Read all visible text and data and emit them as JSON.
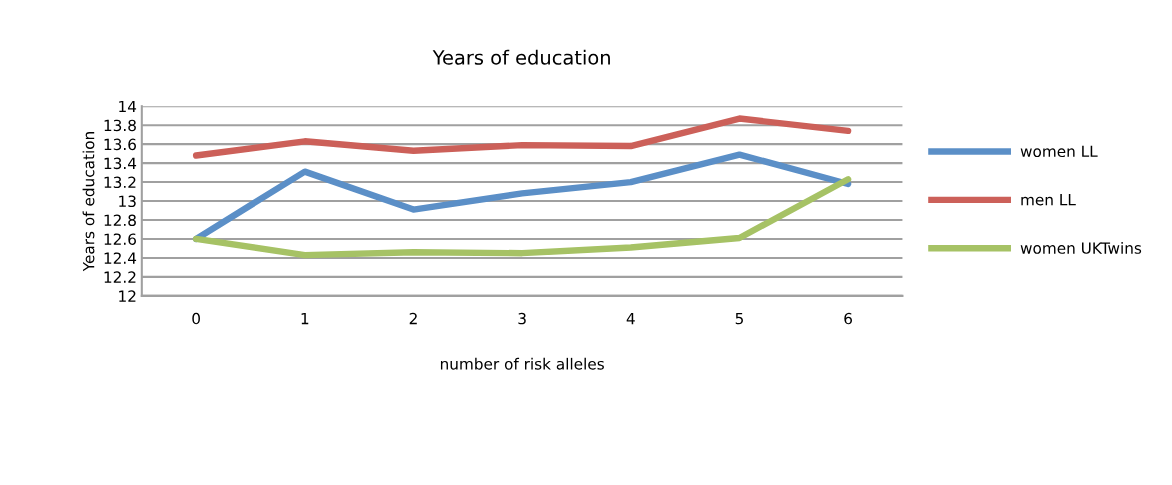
{
  "chart_data": {
    "type": "line",
    "title": "Years of education",
    "xlabel": "number of risk alleles",
    "ylabel": "Years of education",
    "categories": [
      "0",
      "1",
      "2",
      "3",
      "4",
      "5",
      "6"
    ],
    "series": [
      {
        "name": "women LL",
        "color": "#5b8fc7",
        "values": [
          12.6,
          13.31,
          12.91,
          13.08,
          13.2,
          13.49,
          13.18
        ]
      },
      {
        "name": "men LL",
        "color": "#cc6059",
        "values": [
          13.48,
          13.63,
          13.53,
          13.59,
          13.58,
          13.87,
          13.74
        ]
      },
      {
        "name": "women UKTwins",
        "color": "#a6c265",
        "values": [
          12.6,
          12.43,
          12.46,
          12.45,
          12.51,
          12.61,
          13.23
        ]
      }
    ],
    "ylim": [
      12,
      14
    ],
    "yticks": [
      12,
      12.2,
      12.4,
      12.6,
      12.8,
      13,
      13.2,
      13.4,
      13.6,
      13.8,
      14
    ],
    "grid": "y",
    "legend": "right",
    "marker": "none",
    "line_style": "solid"
  }
}
